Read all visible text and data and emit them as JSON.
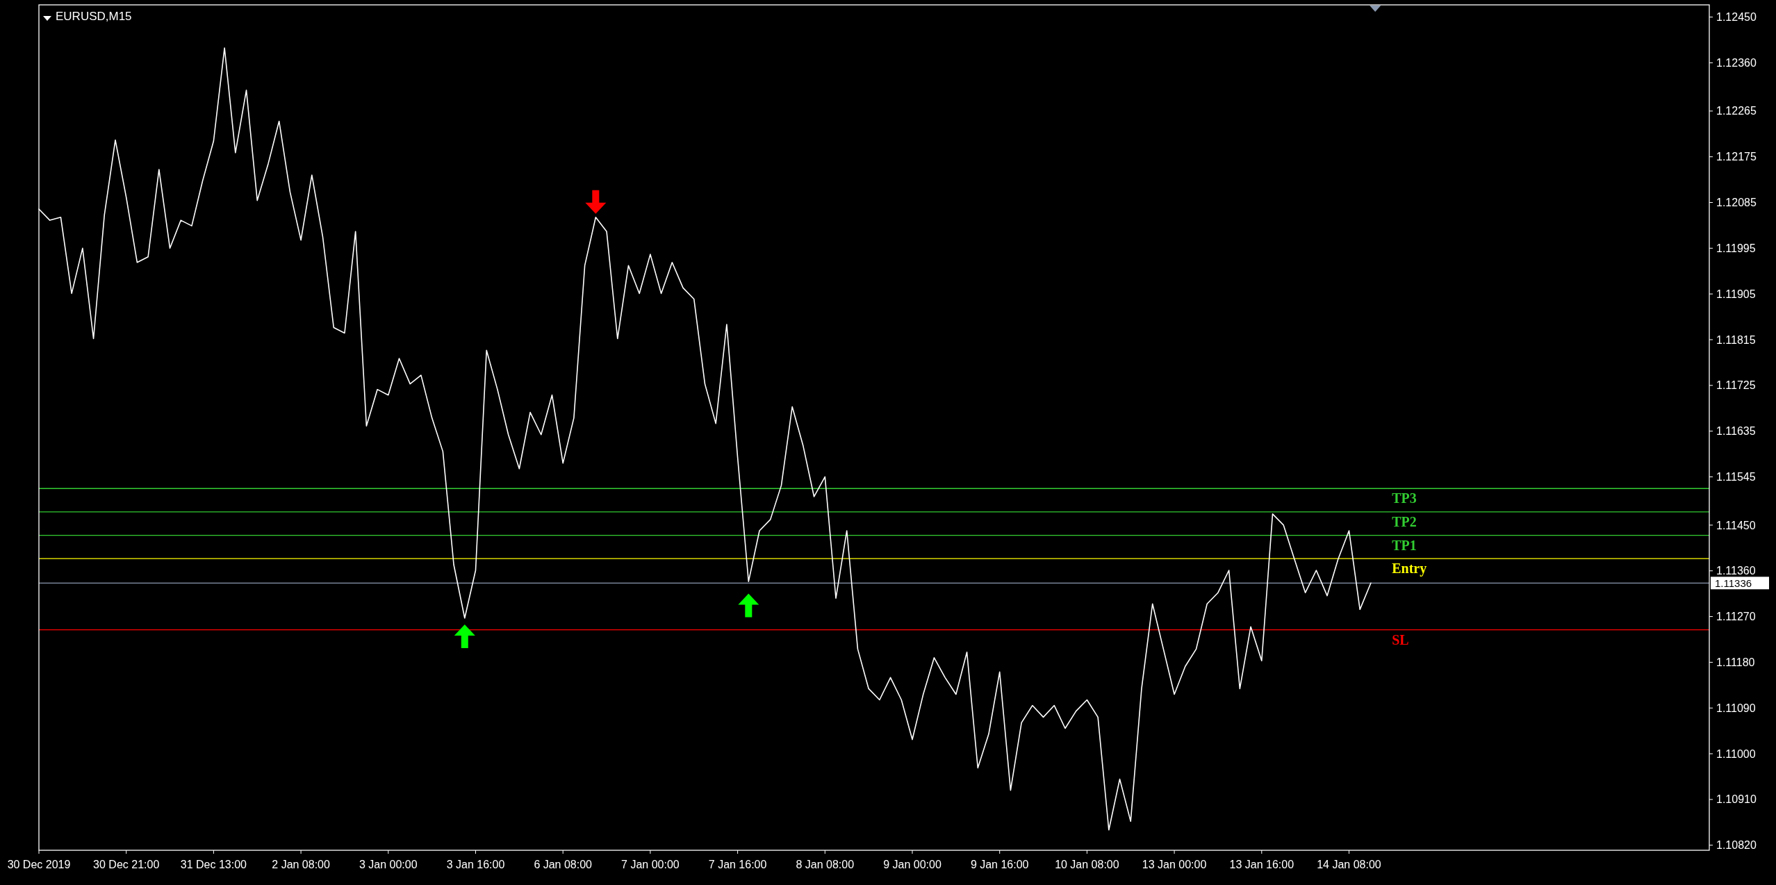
{
  "chart_data": {
    "type": "line",
    "title": "EURUSD,M15",
    "categories": [
      "30 Dec 2019",
      null,
      null,
      null,
      null,
      null,
      null,
      null,
      "30 Dec 21:00",
      null,
      null,
      null,
      null,
      null,
      null,
      null,
      "31 Dec 13:00",
      null,
      null,
      null,
      null,
      null,
      null,
      null,
      "2 Jan 08:00",
      null,
      null,
      null,
      null,
      null,
      null,
      null,
      "3 Jan 00:00",
      null,
      null,
      null,
      null,
      null,
      null,
      null,
      "3 Jan 16:00",
      null,
      null,
      null,
      null,
      null,
      null,
      null,
      "6 Jan 08:00",
      null,
      null,
      null,
      null,
      null,
      null,
      null,
      "7 Jan 00:00",
      null,
      null,
      null,
      null,
      null,
      null,
      null,
      "7 Jan 16:00",
      null,
      null,
      null,
      null,
      null,
      null,
      null,
      "8 Jan 08:00",
      null,
      null,
      null,
      null,
      null,
      null,
      null,
      "9 Jan 00:00",
      null,
      null,
      null,
      null,
      null,
      null,
      null,
      "9 Jan 16:00",
      null,
      null,
      null,
      null,
      null,
      null,
      null,
      "10 Jan 08:00",
      null,
      null,
      null,
      null,
      null,
      null,
      null,
      "13 Jan 00:00",
      null,
      null,
      null,
      null,
      null,
      null,
      null,
      "13 Jan 16:00",
      null,
      null,
      null,
      null,
      null,
      null,
      null,
      "14 Jan 08:00",
      null,
      null,
      null,
      null,
      null,
      null,
      null,
      null,
      null,
      null,
      null,
      null,
      null,
      null,
      null,
      null,
      null,
      null,
      null,
      null,
      null,
      null,
      null,
      null,
      null,
      null,
      null,
      null,
      null,
      null,
      null,
      null,
      null
    ],
    "ylim": [
      1.1081,
      1.12474
    ],
    "yticks": [
      {
        "value": 1.1245,
        "label": "1.12450"
      },
      {
        "value": 1.1236,
        "label": "1.12360"
      },
      {
        "value": 1.12265,
        "label": "1.12265"
      },
      {
        "value": 1.12175,
        "label": "1.12175"
      },
      {
        "value": 1.12085,
        "label": "1.12085"
      },
      {
        "value": 1.11995,
        "label": "1.11995"
      },
      {
        "value": 1.11905,
        "label": "1.11905"
      },
      {
        "value": 1.11815,
        "label": "1.11815"
      },
      {
        "value": 1.11725,
        "label": "1.11725"
      },
      {
        "value": 1.11635,
        "label": "1.11635"
      },
      {
        "value": 1.11545,
        "label": "1.11545"
      },
      {
        "value": 1.1145,
        "label": "1.11450"
      },
      {
        "value": 1.1136,
        "label": "1.11360"
      },
      {
        "value": 1.1127,
        "label": "1.11270"
      },
      {
        "value": 1.1118,
        "label": "1.11180"
      },
      {
        "value": 1.1109,
        "label": "1.11090"
      },
      {
        "value": 1.11,
        "label": "1.11000"
      },
      {
        "value": 1.1091,
        "label": "1.10910"
      },
      {
        "value": 1.1082,
        "label": "1.10820"
      }
    ],
    "series": [
      {
        "color": "#ffffff",
        "values": [
          1.12072,
          1.1205,
          1.12056,
          1.11906,
          1.11995,
          1.11817,
          1.12061,
          1.12208,
          1.12095,
          1.11967,
          1.11978,
          1.1215,
          1.11995,
          1.1205,
          1.12039,
          1.12128,
          1.12206,
          1.12389,
          1.12183,
          1.12306,
          1.12089,
          1.12161,
          1.12245,
          1.12106,
          1.12011,
          1.12139,
          1.12017,
          1.11839,
          1.11828,
          1.12028,
          1.11645,
          1.11717,
          1.11706,
          1.11778,
          1.11728,
          1.11745,
          1.11661,
          1.11595,
          1.11372,
          1.11267,
          1.11361,
          1.11794,
          1.11717,
          1.11628,
          1.11561,
          1.11672,
          1.11628,
          1.11706,
          1.11572,
          1.11661,
          1.11961,
          1.12056,
          1.12028,
          1.11817,
          1.11961,
          1.11906,
          1.11983,
          1.11906,
          1.11967,
          1.11917,
          1.11895,
          1.11728,
          1.1165,
          1.11845,
          1.11583,
          1.11339,
          1.11439,
          1.11461,
          1.11528,
          1.11683,
          1.11606,
          1.11506,
          1.11545,
          1.11306,
          1.11439,
          1.11206,
          1.11128,
          1.11106,
          1.1115,
          1.11106,
          1.11028,
          1.11117,
          1.11189,
          1.1115,
          1.11117,
          1.112,
          1.10972,
          1.11039,
          1.11161,
          1.10928,
          1.11061,
          1.11095,
          1.11072,
          1.11095,
          1.1105,
          1.11084,
          1.11106,
          1.11072,
          1.1085,
          1.1095,
          1.10867,
          1.11128,
          1.11295,
          1.11206,
          1.11117,
          1.11172,
          1.11206,
          1.11295,
          1.11317,
          1.11361,
          1.11128,
          1.1125,
          1.11183,
          1.11472,
          1.1145,
          1.11383,
          1.11317,
          1.11361,
          1.11311,
          1.11383,
          1.11439,
          1.11284,
          1.11336,
          null,
          null,
          null,
          null,
          null,
          null,
          null,
          null,
          null,
          null,
          null,
          null,
          null,
          null,
          null,
          null,
          null,
          null,
          null,
          null,
          null,
          null,
          null,
          null,
          null,
          null,
          null,
          null,
          null,
          null,
          null
        ]
      },
      {
        "type": "scatter",
        "color": "#00ff00",
        "marker": "triangle",
        "values": [
          null,
          null,
          null,
          null,
          null,
          null,
          null,
          null,
          null,
          null,
          null,
          null,
          null,
          null,
          null,
          null,
          null,
          null,
          null,
          null,
          null,
          null,
          null,
          null,
          null,
          null,
          null,
          null,
          null,
          null,
          null,
          null,
          null,
          null,
          null,
          null,
          null,
          null,
          null,
          1.11231,
          null,
          null,
          null,
          null,
          null,
          null,
          null,
          null,
          null,
          null,
          null,
          null,
          null,
          null,
          null,
          null,
          null,
          null,
          null,
          null,
          null,
          null,
          null,
          null,
          null,
          1.11292,
          null,
          null,
          null,
          null,
          null,
          null,
          null,
          null,
          null,
          null,
          null,
          null,
          null,
          null,
          null,
          null,
          null,
          null,
          null,
          null,
          null,
          null,
          null,
          null,
          null,
          null,
          null,
          null,
          null,
          null,
          null,
          null,
          null,
          null,
          null,
          null,
          null,
          null,
          null,
          null,
          null,
          null,
          null,
          null,
          null,
          null,
          null,
          null,
          null,
          null,
          null,
          null,
          null,
          null,
          null,
          null,
          null,
          null,
          null,
          null,
          null,
          null,
          null,
          null,
          null,
          null,
          null,
          null,
          null,
          null,
          null,
          null,
          null,
          null,
          null,
          null,
          null,
          null,
          null,
          null,
          null,
          null,
          null,
          null,
          null,
          null,
          null,
          null
        ]
      },
      {
        "type": "scatter",
        "color": "#ff0000",
        "marker": "triangle",
        "values": [
          null,
          null,
          null,
          null,
          null,
          null,
          null,
          null,
          null,
          null,
          null,
          null,
          null,
          null,
          null,
          null,
          null,
          null,
          null,
          null,
          null,
          null,
          null,
          null,
          null,
          null,
          null,
          null,
          null,
          null,
          null,
          null,
          null,
          null,
          null,
          null,
          null,
          null,
          null,
          null,
          null,
          null,
          null,
          null,
          null,
          null,
          null,
          null,
          null,
          null,
          null,
          1.12086,
          null,
          null,
          null,
          null,
          null,
          null,
          null,
          null,
          null,
          null,
          null,
          null,
          null,
          null,
          null,
          null,
          null,
          null,
          null,
          null,
          null,
          null,
          null,
          null,
          null,
          null,
          null,
          null,
          null,
          null,
          null,
          null,
          null,
          null,
          null,
          null,
          null,
          null,
          null,
          null,
          null,
          null,
          null,
          null,
          null,
          null,
          null,
          null,
          null,
          null,
          null,
          null,
          null,
          null,
          null,
          null,
          null,
          null,
          null,
          null,
          null,
          null,
          null,
          null,
          null,
          null,
          null,
          null,
          null,
          null,
          null,
          null,
          null,
          null,
          null,
          null,
          null,
          null,
          null,
          null,
          null,
          null,
          null,
          null,
          null,
          null,
          null,
          null,
          null,
          null,
          null,
          null,
          null,
          null,
          null,
          null,
          null,
          null,
          null,
          null,
          null,
          null
        ]
      }
    ],
    "ref_lines": [
      {
        "axis": "y",
        "value": 1.11522,
        "label": "TP3",
        "color": "#32cd32"
      },
      {
        "axis": "y",
        "value": 1.11476,
        "label": "TP2",
        "color": "#32cd32"
      },
      {
        "axis": "y",
        "value": 1.1143,
        "label": "TP1",
        "color": "#32cd32"
      },
      {
        "axis": "y",
        "value": 1.11384,
        "label": "Entry",
        "color": "#ffff00"
      },
      {
        "axis": "y",
        "value": 1.11336,
        "label": "1.11336",
        "color": "#8a99b0"
      },
      {
        "axis": "y",
        "value": 1.11244,
        "label": "SL",
        "color": "#ff0000"
      }
    ]
  }
}
